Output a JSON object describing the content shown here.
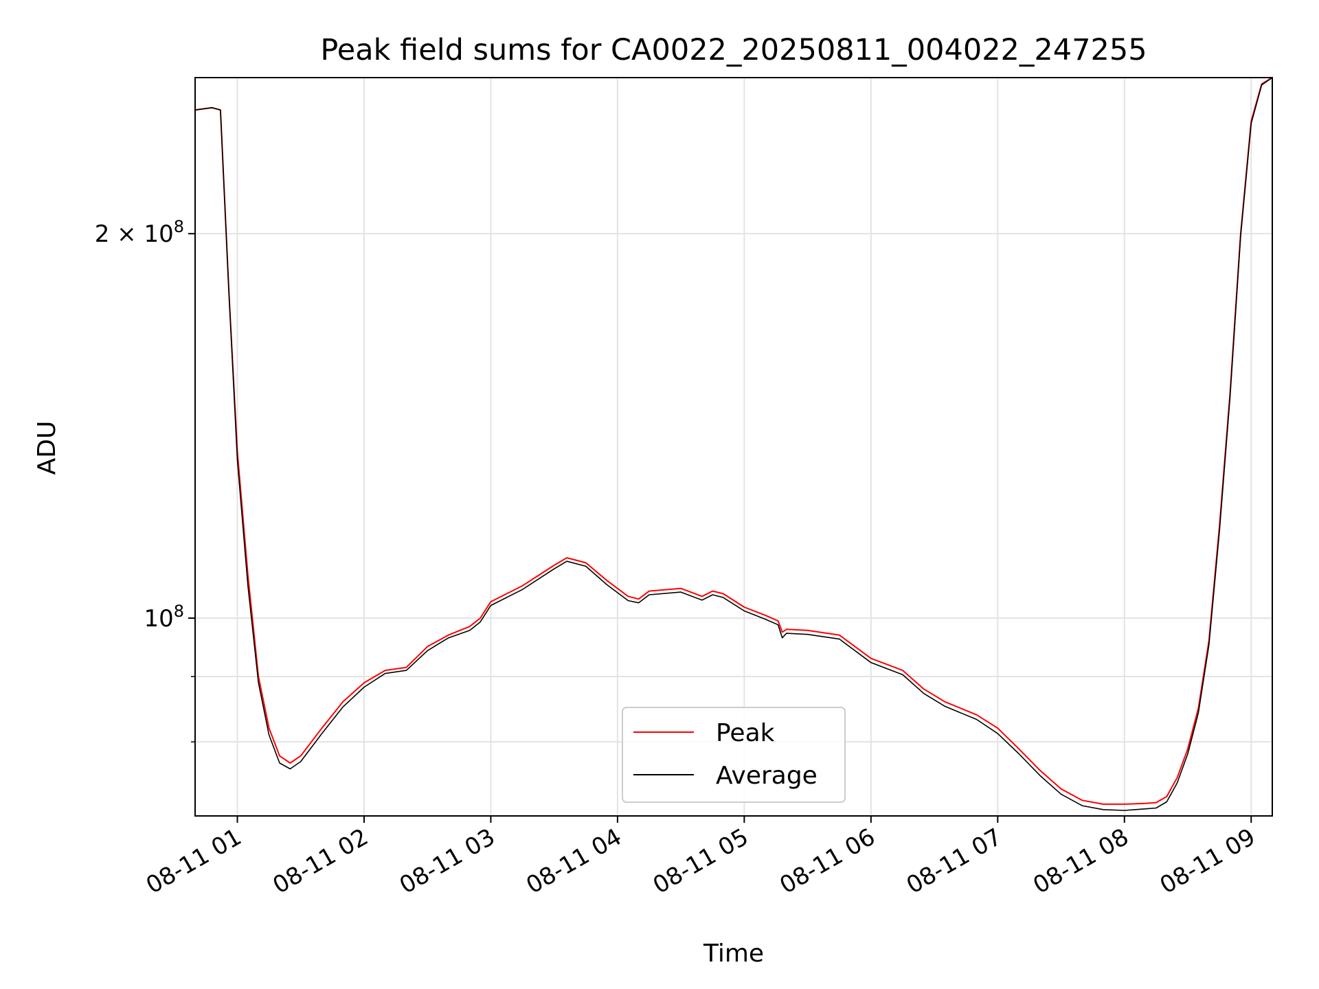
{
  "chart_data": {
    "type": "line",
    "title": "Peak field sums for CA0022_20250811_004022_247255",
    "xlabel": "Time",
    "ylabel": "ADU",
    "yscale": "log",
    "grid": true,
    "legend_position": "lower-center",
    "xlim": [
      "2025-08-11 00:40",
      "2025-08-11 09:10"
    ],
    "ylim": [
      70000000,
      265000000
    ],
    "x_ticks": [
      {
        "value": "2025-08-11 01:00",
        "label": "08-11 01"
      },
      {
        "value": "2025-08-11 02:00",
        "label": "08-11 02"
      },
      {
        "value": "2025-08-11 03:00",
        "label": "08-11 03"
      },
      {
        "value": "2025-08-11 04:00",
        "label": "08-11 04"
      },
      {
        "value": "2025-08-11 05:00",
        "label": "08-11 05"
      },
      {
        "value": "2025-08-11 06:00",
        "label": "08-11 06"
      },
      {
        "value": "2025-08-11 07:00",
        "label": "08-11 07"
      },
      {
        "value": "2025-08-11 08:00",
        "label": "08-11 08"
      },
      {
        "value": "2025-08-11 09:00",
        "label": "08-11 09"
      }
    ],
    "y_ticks": [
      {
        "value": 100000000,
        "base": "10",
        "exp": "8"
      },
      {
        "value": 200000000,
        "mantissa": "2 × ",
        "base": "10",
        "exp": "8"
      }
    ],
    "y_minor_ticks": [
      80000000,
      90000000
    ],
    "series": [
      {
        "name": "Peak",
        "color": "#ff0000",
        "x": [
          "2025-08-11 00:40",
          "2025-08-11 00:48",
          "2025-08-11 00:52",
          "2025-08-11 00:56",
          "2025-08-11 01:00",
          "2025-08-11 01:05",
          "2025-08-11 01:10",
          "2025-08-11 01:15",
          "2025-08-11 01:20",
          "2025-08-11 01:25",
          "2025-08-11 01:30",
          "2025-08-11 01:40",
          "2025-08-11 01:50",
          "2025-08-11 02:00",
          "2025-08-11 02:10",
          "2025-08-11 02:20",
          "2025-08-11 02:30",
          "2025-08-11 02:40",
          "2025-08-11 02:50",
          "2025-08-11 02:55",
          "2025-08-11 03:00",
          "2025-08-11 03:15",
          "2025-08-11 03:30",
          "2025-08-11 03:36",
          "2025-08-11 03:45",
          "2025-08-11 03:55",
          "2025-08-11 04:05",
          "2025-08-11 04:10",
          "2025-08-11 04:15",
          "2025-08-11 04:30",
          "2025-08-11 04:40",
          "2025-08-11 04:45",
          "2025-08-11 04:50",
          "2025-08-11 05:00",
          "2025-08-11 05:10",
          "2025-08-11 05:16",
          "2025-08-11 05:18",
          "2025-08-11 05:20",
          "2025-08-11 05:30",
          "2025-08-11 05:45",
          "2025-08-11 06:00",
          "2025-08-11 06:15",
          "2025-08-11 06:25",
          "2025-08-11 06:35",
          "2025-08-11 06:50",
          "2025-08-11 07:00",
          "2025-08-11 07:10",
          "2025-08-11 07:20",
          "2025-08-11 07:30",
          "2025-08-11 07:40",
          "2025-08-11 07:50",
          "2025-08-11 08:00",
          "2025-08-11 08:10",
          "2025-08-11 08:15",
          "2025-08-11 08:20",
          "2025-08-11 08:25",
          "2025-08-11 08:30",
          "2025-08-11 08:35",
          "2025-08-11 08:40",
          "2025-08-11 08:45",
          "2025-08-11 08:50",
          "2025-08-11 08:55",
          "2025-08-11 09:00",
          "2025-08-11 09:05",
          "2025-08-11 09:10"
        ],
        "y": [
          250000000,
          251000000,
          250000000,
          180000000,
          135000000,
          108000000,
          90000000,
          82000000,
          78000000,
          77000000,
          78000000,
          82000000,
          86000000,
          89000000,
          91000000,
          91500000,
          95000000,
          97000000,
          98500000,
          100000000,
          103000000,
          106000000,
          110000000,
          111500000,
          110500000,
          107000000,
          104000000,
          103500000,
          105000000,
          105500000,
          104000000,
          105000000,
          104500000,
          102000000,
          100500000,
          99500000,
          97500000,
          98000000,
          97800000,
          97000000,
          93000000,
          91000000,
          88000000,
          86000000,
          84000000,
          82000000,
          79000000,
          76000000,
          73500000,
          72000000,
          71500000,
          71500000,
          71600000,
          71700000,
          72500000,
          75000000,
          79000000,
          85000000,
          96000000,
          118000000,
          150000000,
          200000000,
          245000000,
          262000000,
          265000000
        ]
      },
      {
        "name": "Average",
        "color": "#000000",
        "x": [
          "2025-08-11 00:40",
          "2025-08-11 00:48",
          "2025-08-11 00:52",
          "2025-08-11 00:56",
          "2025-08-11 01:00",
          "2025-08-11 01:05",
          "2025-08-11 01:10",
          "2025-08-11 01:15",
          "2025-08-11 01:20",
          "2025-08-11 01:25",
          "2025-08-11 01:30",
          "2025-08-11 01:40",
          "2025-08-11 01:50",
          "2025-08-11 02:00",
          "2025-08-11 02:10",
          "2025-08-11 02:20",
          "2025-08-11 02:30",
          "2025-08-11 02:40",
          "2025-08-11 02:50",
          "2025-08-11 02:55",
          "2025-08-11 03:00",
          "2025-08-11 03:15",
          "2025-08-11 03:30",
          "2025-08-11 03:36",
          "2025-08-11 03:45",
          "2025-08-11 03:55",
          "2025-08-11 04:05",
          "2025-08-11 04:10",
          "2025-08-11 04:15",
          "2025-08-11 04:30",
          "2025-08-11 04:40",
          "2025-08-11 04:45",
          "2025-08-11 04:50",
          "2025-08-11 05:00",
          "2025-08-11 05:10",
          "2025-08-11 05:16",
          "2025-08-11 05:18",
          "2025-08-11 05:20",
          "2025-08-11 05:30",
          "2025-08-11 05:45",
          "2025-08-11 06:00",
          "2025-08-11 06:15",
          "2025-08-11 06:25",
          "2025-08-11 06:35",
          "2025-08-11 06:50",
          "2025-08-11 07:00",
          "2025-08-11 07:10",
          "2025-08-11 07:20",
          "2025-08-11 07:30",
          "2025-08-11 07:40",
          "2025-08-11 07:50",
          "2025-08-11 08:00",
          "2025-08-11 08:10",
          "2025-08-11 08:15",
          "2025-08-11 08:20",
          "2025-08-11 08:25",
          "2025-08-11 08:30",
          "2025-08-11 08:35",
          "2025-08-11 08:40",
          "2025-08-11 08:45",
          "2025-08-11 08:50",
          "2025-08-11 08:55",
          "2025-08-11 09:00",
          "2025-08-11 09:05",
          "2025-08-11 09:10"
        ],
        "y": [
          250000000,
          251000000,
          250000000,
          180000000,
          133000000,
          106000000,
          89000000,
          81000000,
          77000000,
          76200000,
          77200000,
          81200000,
          85200000,
          88300000,
          90500000,
          91000000,
          94300000,
          96500000,
          97800000,
          99300000,
          102300000,
          105300000,
          109300000,
          110800000,
          109800000,
          106200000,
          103200000,
          102800000,
          104300000,
          104800000,
          103300000,
          104300000,
          103800000,
          101300000,
          99800000,
          98800000,
          96500000,
          97300000,
          97100000,
          96300000,
          92300000,
          90300000,
          87300000,
          85300000,
          83300000,
          81200000,
          78300000,
          75300000,
          72800000,
          71300000,
          70800000,
          70700000,
          70900000,
          71000000,
          71800000,
          74300000,
          78300000,
          84300000,
          95300000,
          117000000,
          149000000,
          199000000,
          244000000,
          261500000,
          265000000
        ]
      }
    ]
  }
}
